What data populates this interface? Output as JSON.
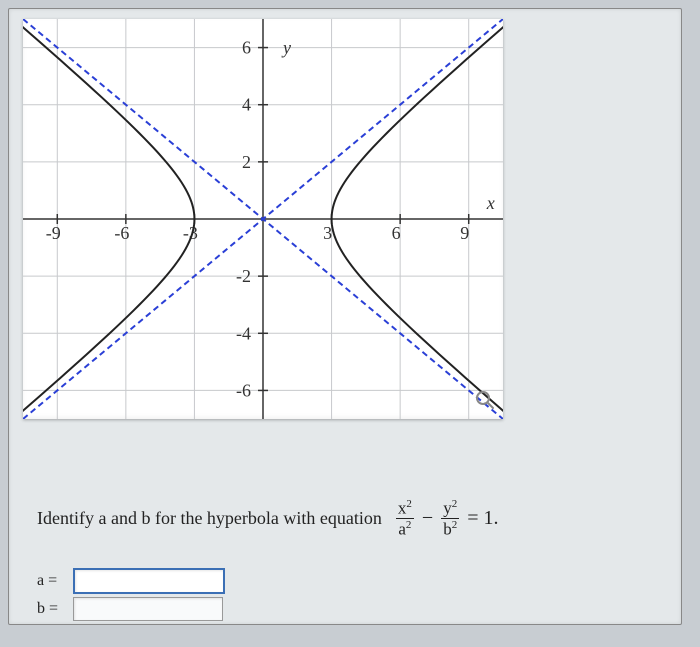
{
  "chart": {
    "type": "hyperbola-plot",
    "background_color": "#ffffff",
    "grid_color": "#c7c9cc",
    "axis_color": "#333333",
    "tick_fontsize": 18,
    "label_fontsize": 18,
    "label_font": "italic serif",
    "xlabel": "x",
    "ylabel": "y",
    "xlim": [
      -10.5,
      10.5
    ],
    "ylim": [
      -7,
      7
    ],
    "xgrid_step": 3,
    "ygrid_step": 2,
    "xticks": [
      -9,
      -6,
      -3,
      3,
      6,
      9
    ],
    "xtick_labels": [
      "-9",
      "-6",
      "-3",
      "3",
      "6",
      "9"
    ],
    "yticks": [
      -6,
      -4,
      -2,
      2,
      4,
      6
    ],
    "ytick_labels": [
      "-6",
      "-4",
      "-2",
      "2",
      "4",
      "6"
    ],
    "hyperbola": {
      "a": 3,
      "b": 2,
      "line_color": "#222222",
      "line_width": 2
    },
    "asymptotes": {
      "slope": 0.6667,
      "line_color": "#2a3fd6",
      "dash": "6,4",
      "line_width": 2
    }
  },
  "prompt": {
    "text": "Identify a and b for the hyperbola with equation",
    "equation": {
      "term1_num": "x",
      "term1_den": "a",
      "term2_num": "y",
      "term2_den": "b",
      "rhs": "= 1."
    }
  },
  "answers": {
    "a_label": "a =",
    "b_label": "b =",
    "a_value": "",
    "b_value": ""
  },
  "colors": {
    "page_bg": "#e4e8ea",
    "outer_bg": "#c8cdd2",
    "input_border_active": "#3b6fb5"
  }
}
